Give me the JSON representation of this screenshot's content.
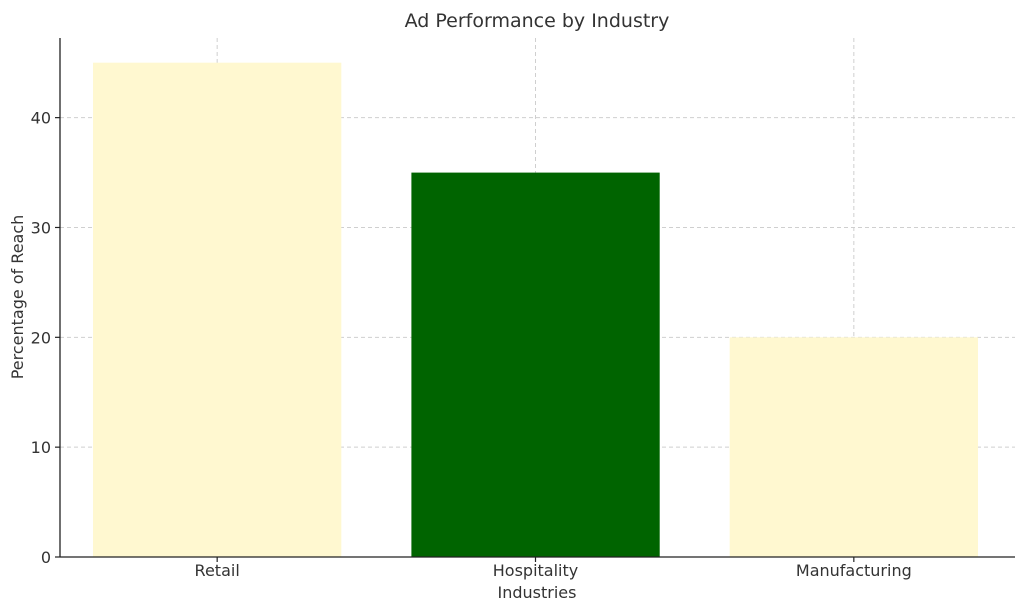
{
  "chart_data": {
    "type": "bar",
    "title": "Ad Performance by Industry",
    "xlabel": "Industries",
    "ylabel": "Percentage of Reach",
    "categories": [
      "Retail",
      "Hospitality",
      "Manufacturing"
    ],
    "values": [
      45,
      35,
      20
    ],
    "colors": [
      "#fff8d0",
      "#006400",
      "#fff8d0"
    ],
    "ylim": [
      0,
      47.25
    ],
    "yticks": [
      0,
      10,
      20,
      30,
      40
    ],
    "grid": true,
    "legend": null
  }
}
